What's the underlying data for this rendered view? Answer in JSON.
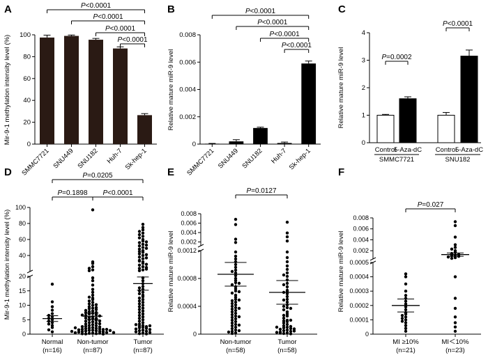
{
  "chart_data": [
    {
      "panel": "A",
      "type": "bar",
      "ylabel": "Mir-9-1 methylation intensity level (%)",
      "ylim": [
        0,
        100
      ],
      "yticks": [
        0,
        20,
        40,
        60,
        80,
        100
      ],
      "categories": [
        "SMMC7721",
        "SNU449",
        "SNU182",
        "Huh-7",
        "Sk-hep-1"
      ],
      "values": [
        97.5,
        99,
        95.5,
        87.5,
        26.5
      ],
      "errors": [
        2.2,
        0.8,
        1.2,
        1.5,
        1.4
      ],
      "bar_color": "#2a1a14",
      "comparisons": [
        {
          "from": "SMMC7721",
          "to": "Sk-hep-1",
          "label": "P<0.0001"
        },
        {
          "from": "SNU449",
          "to": "Sk-hep-1",
          "label": "P<0.0001"
        },
        {
          "from": "SNU182",
          "to": "Sk-hep-1",
          "label": "P<0.0001"
        },
        {
          "from": "Huh-7",
          "to": "Sk-hep-1",
          "label": "P<0.0001"
        }
      ]
    },
    {
      "panel": "B",
      "type": "bar",
      "ylabel": "Relative mature miR-9 level",
      "ylim": [
        0,
        0.008
      ],
      "yticks": [
        "0",
        "0.002",
        "0.004",
        "0.006",
        "0.008"
      ],
      "categories": [
        "SMMC7721",
        "SNU449",
        "SNU182",
        "Huh-7",
        "Sk-hep-1"
      ],
      "values": [
        3e-05,
        0.0002,
        0.00118,
        8e-05,
        0.0059
      ],
      "errors": [
        2e-05,
        0.00012,
        6e-05,
        7e-05,
        0.00018
      ],
      "bar_color": "#000000",
      "comparisons": [
        {
          "from": "SMMC7721",
          "to": "Sk-hep-1",
          "label": "P<0.0001"
        },
        {
          "from": "SNU449",
          "to": "Sk-hep-1",
          "label": "P<0.0001"
        },
        {
          "from": "SNU182",
          "to": "Sk-hep-1",
          "label": "P<0.0001"
        },
        {
          "from": "Huh-7",
          "to": "Sk-hep-1",
          "label": "P<0.0001"
        }
      ]
    },
    {
      "panel": "C",
      "type": "bar",
      "ylabel": "Relative mature miR-9 level",
      "ylim": [
        0,
        4
      ],
      "yticks": [
        0,
        1,
        2,
        3,
        4
      ],
      "groups": [
        {
          "name": "SMMC7721",
          "categories": [
            "Control",
            "5-Aza-dC"
          ],
          "values": [
            1.0,
            1.6
          ],
          "errors": [
            0.03,
            0.07
          ],
          "fills": [
            "#ffffff",
            "#000000"
          ],
          "comparison": "P=0.0002"
        },
        {
          "name": "SNU182",
          "categories": [
            "Control",
            "5-Aza-dC"
          ],
          "values": [
            1.0,
            3.15
          ],
          "errors": [
            0.1,
            0.22
          ],
          "fills": [
            "#ffffff",
            "#000000"
          ],
          "comparison": "P<0.0001"
        }
      ]
    },
    {
      "panel": "D",
      "type": "scatter",
      "ylabel": "Mir-9-1 methylation intensity level (%)",
      "y_axis_segments": [
        {
          "range": [
            0,
            20
          ],
          "ticks": [
            0,
            5,
            10,
            15,
            20
          ]
        },
        {
          "range": [
            20,
            100
          ],
          "ticks": [
            20,
            40,
            60,
            80,
            100
          ]
        }
      ],
      "groups": [
        {
          "name": "Normal",
          "n": "(n=16)",
          "mean": 5.4,
          "sem": 1.0,
          "values": [
            17.3,
            11.2,
            9.5,
            8.3,
            7.1,
            6.5,
            6.0,
            5.5,
            5.0,
            4.5,
            4.0,
            3.5,
            3.0,
            2.3,
            1.5,
            0.8
          ]
        },
        {
          "name": "Non-tumor",
          "n": "(n=87)",
          "mean": 6.2,
          "sem": 1.1,
          "values": [
            97,
            32,
            30,
            26,
            24,
            22,
            21,
            19.5,
            18.5,
            17,
            15.5,
            14.5,
            13.5,
            12.5,
            12,
            11.5,
            11,
            10.5,
            10,
            9.5,
            9,
            8.8,
            8.5,
            8.2,
            8,
            7.8,
            7.5,
            7.2,
            7,
            6.8,
            6.5,
            6.3,
            6,
            5.8,
            5.5,
            5.3,
            5,
            4.8,
            4.5,
            4.3,
            4,
            3.8,
            3.5,
            3.3,
            3,
            2.9,
            2.7,
            2.5,
            2.3,
            2.1,
            2,
            1.9,
            1.8,
            1.7,
            1.6,
            1.5,
            1.4,
            1.3,
            1.2,
            1.1,
            1,
            0.9,
            0.8,
            0.7,
            0.6,
            0.5,
            0.4,
            0.3,
            0.2,
            0.1,
            12.8,
            10.2,
            9.2,
            7.4,
            6.6,
            5.6,
            4.6,
            3.6,
            2.6,
            1.65,
            1.25,
            0.95,
            0.55,
            0.35,
            0.15,
            0.05,
            2.2
          ]
        },
        {
          "name": "Tumor",
          "n": "(n=87)",
          "mean": 17.5,
          "sem": 2.3,
          "values": [
            79,
            75,
            72,
            70,
            68,
            66,
            64,
            62,
            60,
            58,
            56,
            54,
            52,
            50,
            48,
            46,
            44,
            42,
            40,
            38,
            36,
            34,
            32,
            30,
            28,
            26,
            24,
            22,
            21,
            19.5,
            18.5,
            17.5,
            16.5,
            16,
            15.5,
            15,
            14.5,
            14,
            13.5,
            13,
            12.5,
            12,
            11.5,
            11,
            10.5,
            10,
            9.5,
            9,
            8.5,
            8,
            7.5,
            7,
            6.5,
            6,
            5.5,
            5,
            4.5,
            4,
            3.5,
            3,
            2.8,
            2.6,
            2.4,
            2.2,
            2,
            1.8,
            1.6,
            1.4,
            1.2,
            1,
            0.8,
            0.6,
            0.4,
            0.2,
            0.1,
            57,
            53,
            49,
            45,
            41,
            37,
            33,
            29,
            25,
            23,
            3.3,
            2.9
          ]
        }
      ],
      "comparisons": [
        {
          "from": "Normal",
          "to": "Tumor",
          "label": "P=0.0205"
        },
        {
          "from": "Normal",
          "to": "Non-tumor",
          "label": "P=0.1898"
        },
        {
          "from": "Non-tumor",
          "to": "Tumor",
          "label": "P<0.0001"
        }
      ]
    },
    {
      "panel": "E",
      "type": "scatter",
      "ylabel": "Relative mature miR-9 level",
      "y_axis_segments": [
        {
          "range": [
            0,
            0.0012
          ],
          "ticks": [
            "0",
            "0.0004",
            "0.0008",
            "0.0012"
          ]
        },
        {
          "range": [
            0.0012,
            0.008
          ],
          "ticks": [
            "0.002",
            "0.004",
            "0.006",
            "0.008"
          ]
        }
      ],
      "groups": [
        {
          "name": "Non-tumor",
          "n": "(n=58)",
          "mean": 0.00086,
          "sem": 0.00017,
          "values": [
            0.0068,
            0.0057,
            0.0026,
            0.0019,
            0.00118,
            0.00112,
            0.00108,
            0.00104,
            0.001,
            0.00096,
            0.00092,
            0.00088,
            0.00084,
            0.0008,
            0.00077,
            0.00074,
            0.00071,
            0.00068,
            0.00065,
            0.00062,
            0.00059,
            0.00056,
            0.00053,
            0.0005,
            0.00048,
            0.00046,
            0.00044,
            0.00042,
            0.0004,
            0.00038,
            0.00036,
            0.00034,
            0.00032,
            0.0003,
            0.00028,
            0.00026,
            0.00024,
            0.00022,
            0.0002,
            0.00018,
            0.00016,
            0.00014,
            0.00012,
            0.0001,
            8e-05,
            6e-05,
            4e-05,
            2e-05,
            1e-05,
            0.0009,
            0.00073,
            0.00061,
            0.00049,
            0.00037,
            0.00025,
            0.00013,
            5e-05,
            3e-05
          ]
        },
        {
          "name": "Tumor",
          "n": "(n=58)",
          "mean": 0.0006,
          "sem": 0.00017,
          "values": [
            0.0062,
            0.0039,
            0.0031,
            0.0022,
            0.00118,
            0.0011,
            0.00104,
            0.00098,
            0.00093,
            0.00088,
            0.00083,
            0.00078,
            0.00073,
            0.00068,
            0.00063,
            0.00058,
            0.00054,
            0.0005,
            0.00046,
            0.00042,
            0.00038,
            0.00035,
            0.00032,
            0.00029,
            0.00026,
            0.00023,
            0.0002,
            0.00018,
            0.00016,
            0.00014,
            0.00012,
            0.0001,
            9e-05,
            8e-05,
            7e-05,
            6e-05,
            5e-05,
            4e-05,
            3e-05,
            2e-05,
            1e-05,
            5e-06,
            0.00085,
            0.00071,
            0.00061,
            0.00049,
            0.00037,
            0.00027,
            0.00019,
            0.00011,
            7.5e-05,
            4.5e-05,
            2.5e-05,
            1.5e-05,
            0.0006,
            0.0004,
            0.0002,
            0.0001
          ]
        }
      ],
      "comparisons": [
        {
          "from": "Non-tumor",
          "to": "Tumor",
          "label": "P=0.0127"
        }
      ]
    },
    {
      "panel": "F",
      "type": "scatter",
      "ylabel": "Relative mature miR-9 level",
      "y_axis_segments": [
        {
          "range": [
            0,
            0.0005
          ],
          "ticks": [
            "0",
            "0.0001",
            "0.0002",
            "0.0003",
            "0.0004",
            "0.0005"
          ]
        },
        {
          "range": [
            0.0005,
            0.008
          ],
          "ticks": [
            "0.002",
            "0.004",
            "0.006",
            "0.008"
          ]
        }
      ],
      "groups": [
        {
          "name": "MI ≥10%",
          "n": "(n=21)",
          "mean": 0.0002,
          "sem": 4.5e-05,
          "values": [
            0.00042,
            0.0004,
            0.00035,
            0.0003,
            0.00027,
            0.00025,
            0.00023,
            0.00021,
            0.00019,
            0.00017,
            0.00015,
            0.00014,
            0.00013,
            0.00012,
            0.00011,
            0.0001,
            9e-05,
            8e-05,
            6e-05,
            4e-05,
            2e-05
          ]
        },
        {
          "name": "MI＜10%",
          "n": "(n=23)",
          "mean": 0.0013,
          "sem": 0.0003,
          "values": [
            0.0073,
            0.0066,
            0.0045,
            0.0031,
            0.0026,
            0.0023,
            0.002,
            0.0017,
            0.0015,
            0.0013,
            0.0012,
            0.0011,
            0.00098,
            0.00086,
            0.00074,
            0.00062,
            0.0004,
            0.00025,
            0.00018,
            0.00012,
            8e-05,
            5e-05,
            2e-05
          ]
        }
      ],
      "comparisons": [
        {
          "from": "MI ≥10%",
          "to": "MI＜10%",
          "label": "P=0.027"
        }
      ]
    }
  ]
}
